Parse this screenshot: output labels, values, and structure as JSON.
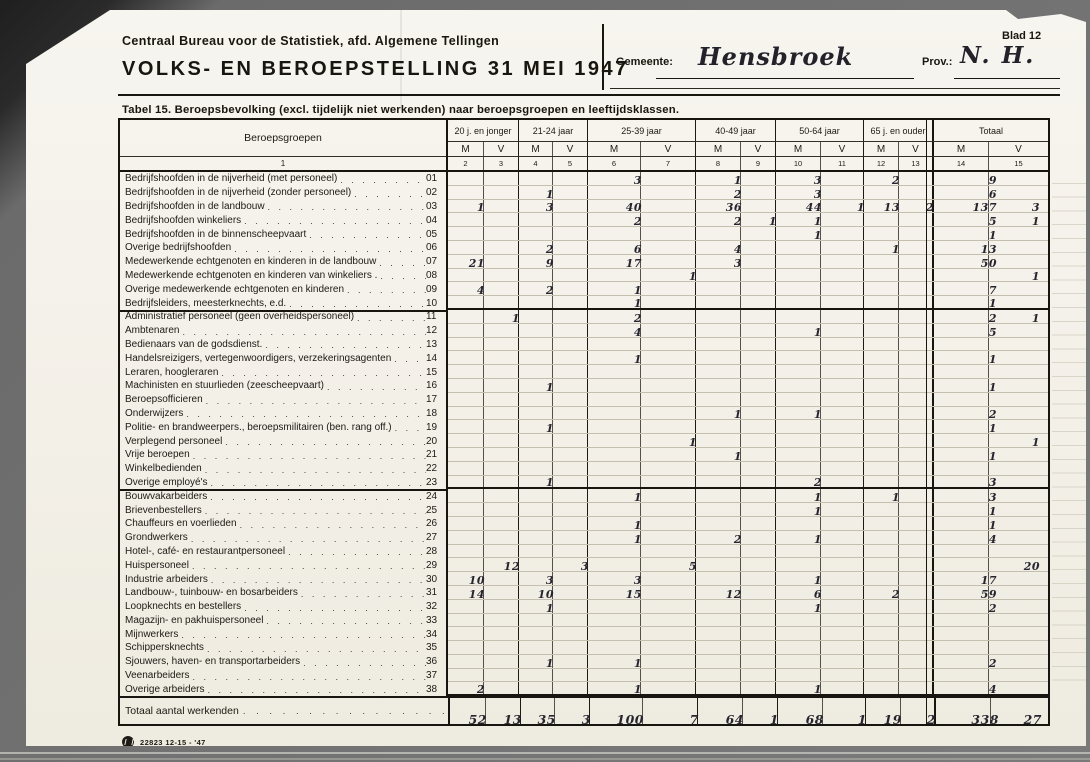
{
  "page": {
    "blad": "Blad 12",
    "org_line": "Centraal Bureau voor de Statistiek, afd. Algemene Tellingen",
    "title": "VOLKS- EN BEROEPSTELLING 31 MEI 1947",
    "gemeente_label": "Gemeente:",
    "gemeente_value": "Hensbroek",
    "prov_label": "Prov.:",
    "prov_value": "N. H.",
    "caption": "Tabel 15.  Beroepsbevolking (excl. tijdelijk niet werkenden) naar beroepsgroepen en leeftijdsklassen.",
    "footer_code": "22823 12-15 - '47"
  },
  "table": {
    "label_header": "Beroepsgroepen",
    "label_col_number": "1",
    "age_groups": [
      "20 j. en jonger",
      "21-24 jaar",
      "25-39 jaar",
      "40-49 jaar",
      "50-64 jaar",
      "65 j. en ouder",
      "Totaal"
    ],
    "mv_headers": [
      "M",
      "V",
      "M",
      "V",
      "M",
      "V",
      "M",
      "V",
      "M",
      "V",
      "M",
      "V",
      "M",
      "V"
    ],
    "col_numbers": [
      "2",
      "3",
      "4",
      "5",
      "6",
      "7",
      "8",
      "9",
      "10",
      "11",
      "12",
      "13",
      "14",
      "15"
    ],
    "value_columns": [
      "m_20j_en_jonger",
      "v_20j_en_jonger",
      "m_21_24",
      "v_21_24",
      "m_25_39",
      "v_25_39",
      "m_40_49",
      "v_40_49",
      "m_50_64",
      "v_50_64",
      "m_65_en_ouder",
      "v_65_en_ouder",
      "m_totaal",
      "v_totaal"
    ],
    "rows": [
      {
        "num": "01",
        "label": "Bedrijfshoofden in de nijverheid (met personeel)",
        "values": [
          "",
          "",
          "",
          "",
          "3",
          "",
          "1",
          "",
          "3",
          "",
          "2",
          "",
          "9",
          ""
        ]
      },
      {
        "num": "02",
        "label": "Bedrijfshoofden in de nijverheid (zonder personeel)",
        "values": [
          "",
          "",
          "1",
          "",
          "",
          "",
          "2",
          "",
          "3",
          "",
          "",
          "",
          "6",
          ""
        ]
      },
      {
        "num": "03",
        "label": "Bedrijfshoofden in de landbouw",
        "values": [
          "1",
          "",
          "3",
          "",
          "40",
          "",
          "36",
          "",
          "44",
          "1",
          "13",
          "2",
          "137",
          "3"
        ]
      },
      {
        "num": "04",
        "label": "Bedrijfshoofden winkeliers",
        "values": [
          "",
          "",
          "",
          "",
          "2",
          "",
          "2",
          "1",
          "1",
          "",
          "",
          "",
          "5",
          "1"
        ]
      },
      {
        "num": "05",
        "label": "Bedrijfshoofden in de binnenscheepvaart",
        "values": [
          "",
          "",
          "",
          "",
          "",
          "",
          "",
          "",
          "1",
          "",
          "",
          "",
          "1",
          ""
        ]
      },
      {
        "num": "06",
        "label": "Overige bedrijfshoofden",
        "values": [
          "",
          "",
          "2",
          "",
          "6",
          "",
          "4",
          "",
          "",
          "",
          "1",
          "",
          "13",
          ""
        ]
      },
      {
        "num": "07",
        "label": "Medewerkende echtgenoten en kinderen in de landbouw",
        "values": [
          "21",
          "",
          "9",
          "",
          "17",
          "",
          "3",
          "",
          "",
          "",
          "",
          "",
          "50",
          ""
        ]
      },
      {
        "num": "08",
        "label": "Medewerkende echtgenoten en kinderen van winkeliers .",
        "values": [
          "",
          "",
          "",
          "",
          "",
          "1",
          "",
          "",
          "",
          "",
          "",
          "",
          "",
          "1"
        ]
      },
      {
        "num": "09",
        "label": "Overige medewerkende echtgenoten en kinderen",
        "values": [
          "4",
          "",
          "2",
          "",
          "1",
          "",
          "",
          "",
          "",
          "",
          "",
          "",
          "7",
          ""
        ]
      },
      {
        "num": "10",
        "label": "Bedrijfsleiders, meesterknechts, e.d.",
        "sep": true,
        "values": [
          "",
          "",
          "",
          "",
          "1",
          "",
          "",
          "",
          "",
          "",
          "",
          "",
          "1",
          ""
        ]
      },
      {
        "num": "11",
        "label": "Administratief personeel (geen overheidspersoneel)",
        "values": [
          "",
          "1",
          "",
          "",
          "2",
          "",
          "",
          "",
          "",
          "",
          "",
          "",
          "2",
          "1"
        ]
      },
      {
        "num": "12",
        "label": "Ambtenaren",
        "values": [
          "",
          "",
          "",
          "",
          "4",
          "",
          "",
          "",
          "1",
          "",
          "",
          "",
          "5",
          ""
        ]
      },
      {
        "num": "13",
        "label": "Bedienaars van de godsdienst.",
        "values": [
          "",
          "",
          "",
          "",
          "",
          "",
          "",
          "",
          "",
          "",
          "",
          "",
          "",
          ""
        ]
      },
      {
        "num": "14",
        "label": "Handelsreizigers, vertegenwoordigers, verzekeringsagenten",
        "values": [
          "",
          "",
          "",
          "",
          "1",
          "",
          "",
          "",
          "",
          "",
          "",
          "",
          "1",
          ""
        ]
      },
      {
        "num": "15",
        "label": "Leraren, hoogleraren",
        "values": [
          "",
          "",
          "",
          "",
          "",
          "",
          "",
          "",
          "",
          "",
          "",
          "",
          "",
          ""
        ]
      },
      {
        "num": "16",
        "label": "Machinisten en stuurlieden (zeescheepvaart)",
        "values": [
          "",
          "",
          "1",
          "",
          "",
          "",
          "",
          "",
          "",
          "",
          "",
          "",
          "1",
          ""
        ]
      },
      {
        "num": "17",
        "label": "Beroepsofficieren",
        "values": [
          "",
          "",
          "",
          "",
          "",
          "",
          "",
          "",
          "",
          "",
          "",
          "",
          "",
          ""
        ]
      },
      {
        "num": "18",
        "label": "Onderwijzers",
        "values": [
          "",
          "",
          "",
          "",
          "",
          "",
          "1",
          "",
          "1",
          "",
          "",
          "",
          "2",
          ""
        ]
      },
      {
        "num": "19",
        "label": "Politie- en brandweerpers., beroepsmilitairen (ben. rang off.)",
        "values": [
          "",
          "",
          "1",
          "",
          "",
          "",
          "",
          "",
          "",
          "",
          "",
          "",
          "1",
          ""
        ]
      },
      {
        "num": "20",
        "label": "Verplegend personeel",
        "values": [
          "",
          "",
          "",
          "",
          "",
          "1",
          "",
          "",
          "",
          "",
          "",
          "",
          "",
          "1"
        ]
      },
      {
        "num": "21",
        "label": "Vrije beroepen",
        "values": [
          "",
          "",
          "",
          "",
          "",
          "",
          "1",
          "",
          "",
          "",
          "",
          "",
          "1",
          ""
        ]
      },
      {
        "num": "22",
        "label": "Winkelbedienden",
        "values": [
          "",
          "",
          "",
          "",
          "",
          "",
          "",
          "",
          "",
          "",
          "",
          "",
          "",
          ""
        ]
      },
      {
        "num": "23",
        "label": "Overige employé's",
        "sep": true,
        "values": [
          "",
          "",
          "1",
          "",
          "",
          "",
          "",
          "",
          "2",
          "",
          "",
          "",
          "3",
          ""
        ]
      },
      {
        "num": "24",
        "label": "Bouwvakarbeiders",
        "values": [
          "",
          "",
          "",
          "",
          "1",
          "",
          "",
          "",
          "1",
          "",
          "1",
          "",
          "3",
          ""
        ]
      },
      {
        "num": "25",
        "label": "Brievenbestellers",
        "values": [
          "",
          "",
          "",
          "",
          "",
          "",
          "",
          "",
          "1",
          "",
          "",
          "",
          "1",
          ""
        ]
      },
      {
        "num": "26",
        "label": "Chauffeurs en voerlieden",
        "values": [
          "",
          "",
          "",
          "",
          "1",
          "",
          "",
          "",
          "",
          "",
          "",
          "",
          "1",
          ""
        ]
      },
      {
        "num": "27",
        "label": "Grondwerkers",
        "values": [
          "",
          "",
          "",
          "",
          "1",
          "",
          "2",
          "",
          "1",
          "",
          "",
          "",
          "4",
          ""
        ]
      },
      {
        "num": "28",
        "label": "Hotel-, café- en restaurantpersoneel",
        "values": [
          "",
          "",
          "",
          "",
          "",
          "",
          "",
          "",
          "",
          "",
          "",
          "",
          "",
          ""
        ]
      },
      {
        "num": "29",
        "label": "Huispersoneel",
        "values": [
          "",
          "12",
          "",
          "3",
          "",
          "5",
          "",
          "",
          "",
          "",
          "",
          "",
          "",
          "20"
        ]
      },
      {
        "num": "30",
        "label": "Industrie arbeiders",
        "values": [
          "10",
          "",
          "3",
          "",
          "3",
          "",
          "",
          "",
          "1",
          "",
          "",
          "",
          "17",
          ""
        ]
      },
      {
        "num": "31",
        "label": "Landbouw-, tuinbouw- en bosarbeiders",
        "values": [
          "14",
          "",
          "10",
          "",
          "15",
          "",
          "12",
          "",
          "6",
          "",
          "2",
          "",
          "59",
          ""
        ]
      },
      {
        "num": "32",
        "label": "Loopknechts en bestellers",
        "values": [
          "",
          "",
          "1",
          "",
          "",
          "",
          "",
          "",
          "1",
          "",
          "",
          "",
          "2",
          ""
        ]
      },
      {
        "num": "33",
        "label": "Magazijn- en pakhuispersoneel",
        "values": [
          "",
          "",
          "",
          "",
          "",
          "",
          "",
          "",
          "",
          "",
          "",
          "",
          "",
          ""
        ]
      },
      {
        "num": "34",
        "label": "Mijnwerkers",
        "values": [
          "",
          "",
          "",
          "",
          "",
          "",
          "",
          "",
          "",
          "",
          "",
          "",
          "",
          ""
        ]
      },
      {
        "num": "35",
        "label": "Schippersknechts",
        "values": [
          "",
          "",
          "",
          "",
          "",
          "",
          "",
          "",
          "",
          "",
          "",
          "",
          "",
          ""
        ]
      },
      {
        "num": "36",
        "label": "Sjouwers, haven- en transportarbeiders",
        "values": [
          "",
          "",
          "1",
          "",
          "1",
          "",
          "",
          "",
          "",
          "",
          "",
          "",
          "2",
          ""
        ]
      },
      {
        "num": "37",
        "label": "Veenarbeiders",
        "values": [
          "",
          "",
          "",
          "",
          "",
          "",
          "",
          "",
          "",
          "",
          "",
          "",
          "",
          ""
        ]
      },
      {
        "num": "38",
        "label": "Overige arbeiders",
        "sep": true,
        "values": [
          "2",
          "",
          "",
          "",
          "1",
          "",
          "",
          "",
          "1",
          "",
          "",
          "",
          "4",
          ""
        ]
      }
    ],
    "total_row": {
      "label": "Totaal aantal werkenden",
      "values": [
        "52",
        "13",
        "35",
        "3",
        "100",
        "7",
        "64",
        "1",
        "68",
        "1",
        "19",
        "2",
        "338",
        "27"
      ]
    }
  }
}
